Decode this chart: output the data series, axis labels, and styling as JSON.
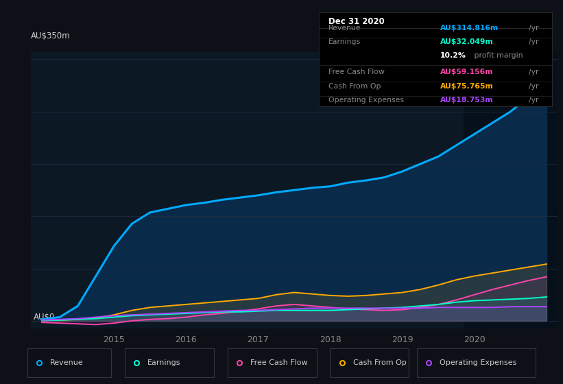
{
  "bg_color": "#0d1117",
  "plot_bg_color": "#0d1825",
  "grid_color": "#1e2d40",
  "ylabel_text": "AU$350m",
  "ylabel0_text": "AU$0",
  "x_years": [
    2014.0,
    2014.25,
    2014.5,
    2014.75,
    2015.0,
    2015.25,
    2015.5,
    2015.75,
    2016.0,
    2016.25,
    2016.5,
    2016.75,
    2017.0,
    2017.25,
    2017.5,
    2017.75,
    2018.0,
    2018.25,
    2018.5,
    2018.75,
    2019.0,
    2019.25,
    2019.5,
    2019.75,
    2020.0,
    2020.25,
    2020.5,
    2020.75,
    2021.0
  ],
  "revenue": [
    2,
    5,
    20,
    60,
    100,
    130,
    145,
    150,
    155,
    158,
    162,
    165,
    168,
    172,
    175,
    178,
    180,
    185,
    188,
    192,
    200,
    210,
    220,
    235,
    250,
    265,
    280,
    300,
    315
  ],
  "earnings": [
    0.5,
    1,
    2,
    3,
    5,
    7,
    8,
    9,
    10,
    11,
    12,
    12,
    13,
    14,
    14,
    14,
    14,
    15,
    16,
    17,
    18,
    20,
    22,
    25,
    27,
    28,
    29,
    30,
    32
  ],
  "free_cash_flow": [
    -2,
    -3,
    -4,
    -5,
    -3,
    0,
    2,
    3,
    5,
    8,
    10,
    13,
    16,
    20,
    22,
    20,
    18,
    16,
    15,
    14,
    15,
    18,
    22,
    28,
    35,
    42,
    48,
    54,
    59
  ],
  "cash_from_op": [
    0.5,
    1,
    2,
    4,
    8,
    14,
    18,
    20,
    22,
    24,
    26,
    28,
    30,
    35,
    38,
    36,
    34,
    33,
    34,
    36,
    38,
    42,
    48,
    55,
    60,
    64,
    68,
    72,
    76
  ],
  "operating_expenses": [
    1,
    2,
    3,
    5,
    7,
    8,
    9,
    10,
    11,
    12,
    13,
    14,
    14,
    15,
    16,
    17,
    17,
    17,
    17,
    17,
    17,
    17,
    18,
    18,
    18,
    18,
    19,
    19,
    19
  ],
  "revenue_color": "#00aaff",
  "earnings_color": "#00ffcc",
  "free_cash_flow_color": "#ff44aa",
  "cash_from_op_color": "#ffaa00",
  "operating_expenses_color": "#aa44ff",
  "revenue_fill_color": "#0a2a4a",
  "highlight_x_start": 2019.85,
  "info_box": {
    "title": "Dec 31 2020",
    "revenue_label": "Revenue",
    "revenue_value": "AU$314.816m",
    "revenue_color": "#00aaff",
    "earnings_label": "Earnings",
    "earnings_value": "AU$32.049m",
    "earnings_color": "#00ffcc",
    "margin_text": "10.2% profit margin",
    "fcf_label": "Free Cash Flow",
    "fcf_value": "AU$59.156m",
    "fcf_color": "#ff44aa",
    "cfop_label": "Cash From Op",
    "cfop_value": "AU$75.765m",
    "cfop_color": "#ffaa00",
    "opex_label": "Operating Expenses",
    "opex_value": "AU$18.753m",
    "opex_color": "#aa44ff"
  },
  "legend": [
    {
      "label": "Revenue",
      "color": "#00aaff"
    },
    {
      "label": "Earnings",
      "color": "#00ffcc"
    },
    {
      "label": "Free Cash Flow",
      "color": "#ff44aa"
    },
    {
      "label": "Cash From Op",
      "color": "#ffaa00"
    },
    {
      "label": "Operating Expenses",
      "color": "#aa44ff"
    }
  ],
  "xlim": [
    2013.85,
    2021.15
  ],
  "ylim": [
    -10,
    360
  ],
  "xticks": [
    2015,
    2016,
    2017,
    2018,
    2019,
    2020
  ]
}
